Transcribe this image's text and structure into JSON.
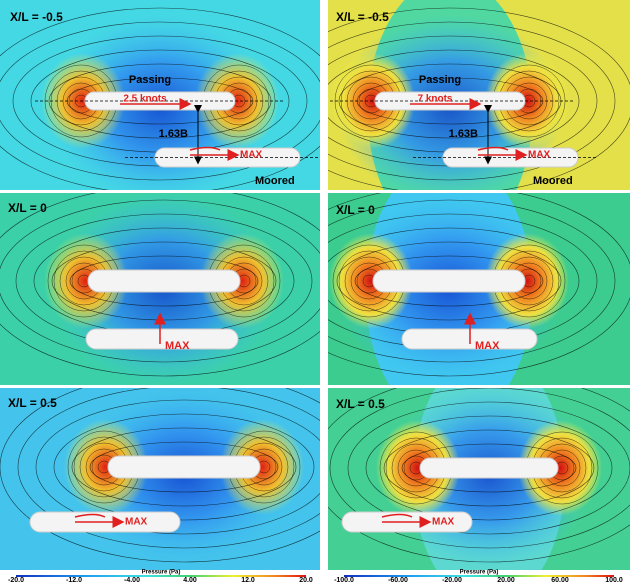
{
  "panels": [
    {
      "label": "X/L = -0.5",
      "passing": "Passing",
      "speed": "2.5 knots",
      "gap": "1.63B",
      "max": "MAX",
      "moored": "Moored"
    },
    {
      "label": "X/L = -0.5",
      "passing": "Passing",
      "speed": "7 knots",
      "gap": "1.63B",
      "max": "MAX",
      "moored": "Moored"
    },
    {
      "label": "X/L = 0",
      "max": "MAX"
    },
    {
      "label": "X/L = 0",
      "max": "MAX"
    },
    {
      "label": "X/L = 0.5",
      "max": "MAX"
    },
    {
      "label": "X/L = 0.5",
      "max": "MAX"
    }
  ],
  "colorbars": [
    {
      "title": "Pressure (Pa)",
      "ticks": [
        "-20.0",
        "-12.0",
        "-4.00",
        "4.00",
        "12.0",
        "20.0"
      ]
    },
    {
      "title": "Pressure (Pa)",
      "ticks": [
        "-100.0",
        "-60.00",
        "-20.00",
        "20.00",
        "60.00",
        "100.0"
      ]
    }
  ]
}
